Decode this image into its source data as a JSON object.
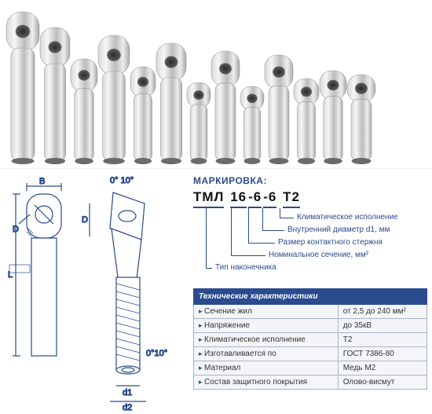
{
  "product_photo": {
    "background": "#ffffff",
    "lug_count": 13,
    "lug_gradient": [
      "#f2f2f2",
      "#b8b8b8",
      "#e6e6e6",
      "#9e9e9e"
    ],
    "hole_color": "#4a4a4a"
  },
  "diagram": {
    "outline_color": "#2a4b8d",
    "fill_color": "#e8ecf4",
    "labels": {
      "B": "B",
      "D": "D",
      "D2": "D",
      "L": "L",
      "d1": "d1",
      "d2": "d2",
      "angle_top": "0° 10°",
      "angle_bot": "0°10°"
    }
  },
  "marking": {
    "header": "МАРКИРОВКА:",
    "segments": [
      "ТМЛ",
      "16",
      "-6",
      "-6",
      "Т2"
    ],
    "callouts": [
      "Климатическое исполнение",
      "Внутренний диаметр d1, мм",
      "Размер контактного стержня",
      "Номинальное сечение, мм²",
      "Тип наконечника"
    ]
  },
  "spec_table": {
    "header_bg": "#2a4b8d",
    "header_fg": "#ffffff",
    "row_bg": "#f3f5f9",
    "border_color": "#a8b4c8",
    "header": "Технические характеристики",
    "rows": [
      {
        "label": "Сечение жил",
        "value": "от 2,5 до 240 мм²"
      },
      {
        "label": "Напряжение",
        "value": "до 35кВ"
      },
      {
        "label": "Климатическое исполнение",
        "value": "Т2"
      },
      {
        "label": "Изготавливается по",
        "value": "ГОСТ 7386-80"
      },
      {
        "label": "Материал",
        "value": "Медь М2"
      },
      {
        "label": "Состав защитного покрытия",
        "value": "Олово-висмут"
      }
    ]
  }
}
